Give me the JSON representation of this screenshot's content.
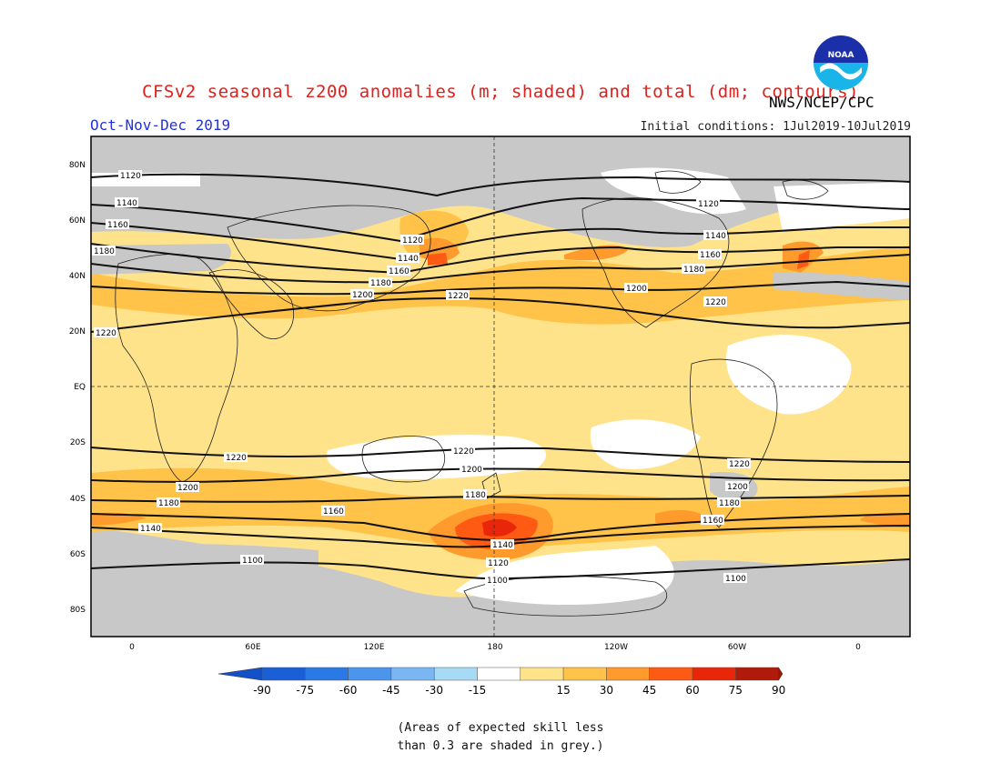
{
  "header": {
    "title": "CFSv2 seasonal z200 anomalies (m; shaded) and total (dm; contours)",
    "season": "Oct-Nov-Dec 2019",
    "agency": "NWS/NCEP/CPC",
    "initial_conditions": "Initial conditions: 1Jul2019-10Jul2019",
    "logo_text": "NOAA"
  },
  "map": {
    "lat_labels": [
      "80N",
      "60N",
      "40N",
      "20N",
      "EQ",
      "20S",
      "40S",
      "60S",
      "80S"
    ],
    "lon_labels": [
      "0",
      "60E",
      "120E",
      "180",
      "120W",
      "60W",
      "0"
    ],
    "contours": [
      {
        "label": "1120",
        "level": 1120
      },
      {
        "label": "1140",
        "level": 1140
      },
      {
        "label": "1160",
        "level": 1160
      },
      {
        "label": "1180",
        "level": 1180
      },
      {
        "label": "1200",
        "level": 1200
      },
      {
        "label": "1220",
        "level": 1220
      },
      {
        "label": "1100",
        "level": 1100
      }
    ]
  },
  "colorbar": {
    "ticks": [
      "-90",
      "-75",
      "-60",
      "-45",
      "-30",
      "-15",
      "15",
      "30",
      "45",
      "60",
      "75",
      "90"
    ],
    "colors": [
      "#1a5fd6",
      "#2b79e4",
      "#4b95ec",
      "#79b6f2",
      "#a7dbf5",
      "#ffffff",
      "#ffe38a",
      "#ffc34a",
      "#ff9a2c",
      "#ff5a14",
      "#e8260a",
      "#b01a0a"
    ],
    "low_color": "#1450c8",
    "high_color": "#9c1408"
  },
  "note": {
    "line1": "(Areas of expected skill less",
    "line2": "than 0.3 are shaded in grey.)"
  }
}
